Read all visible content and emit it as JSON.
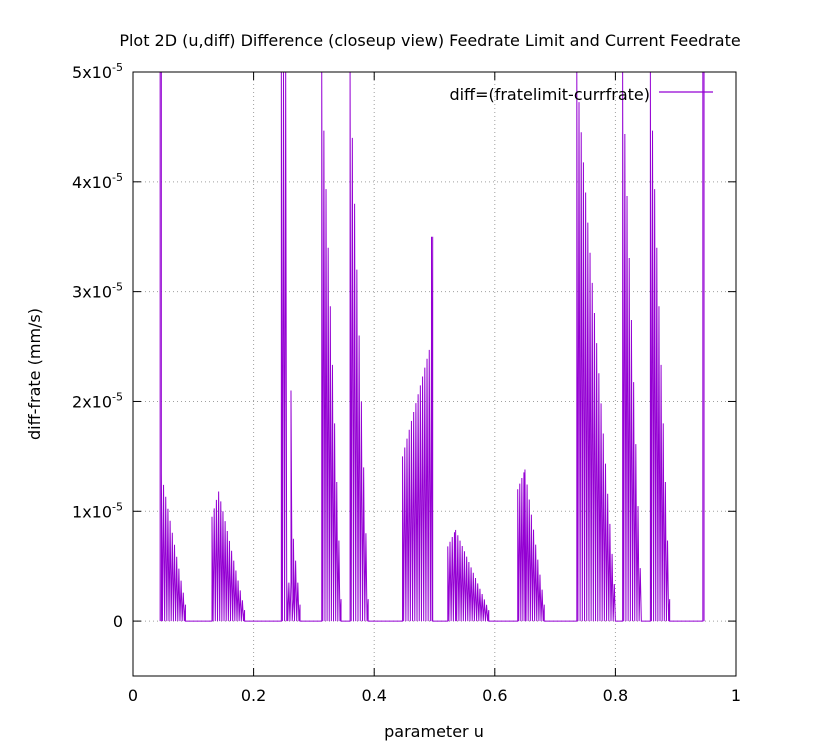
{
  "chart_data": {
    "type": "line",
    "title": "Plot 2D (u,diff) Difference (closeup view) Feedrate Limit and Current Feedrate",
    "xlabel": "parameter u",
    "ylabel": "diff-frate (mm/s)",
    "xlim": [
      0,
      1
    ],
    "ylim": [
      -5e-06,
      5e-05
    ],
    "grid": true,
    "legend_position": "top-right",
    "x_ticks": [
      {
        "value": 0,
        "label": "0"
      },
      {
        "value": 0.2,
        "label": "0.2"
      },
      {
        "value": 0.4,
        "label": "0.4"
      },
      {
        "value": 0.6,
        "label": "0.6"
      },
      {
        "value": 0.8,
        "label": "0.8"
      },
      {
        "value": 1,
        "label": "1"
      }
    ],
    "y_ticks": [
      {
        "value": 0,
        "mantissa": "0",
        "exponent": ""
      },
      {
        "value": 1e-05,
        "mantissa": "1x10",
        "exponent": "-5"
      },
      {
        "value": 2e-05,
        "mantissa": "2x10",
        "exponent": "-5"
      },
      {
        "value": 3e-05,
        "mantissa": "3x10",
        "exponent": "-5"
      },
      {
        "value": 4e-05,
        "mantissa": "4x10",
        "exponent": "-5"
      },
      {
        "value": 5e-05,
        "mantissa": "5x10",
        "exponent": "-5"
      }
    ],
    "series": [
      {
        "name": "diff=(fratelimit-currfrate)",
        "color": "#9400d3",
        "segments": [
          {
            "u_start": 0.045,
            "u_end": 0.047,
            "max_start": 5e-05,
            "max_end": 5e-05,
            "pattern": "solid"
          },
          {
            "u_start": 0.047,
            "u_end": 0.087,
            "max_start": 1.35e-05,
            "max_end": 1.5e-06,
            "pattern": "oscillating"
          },
          {
            "u_start": 0.087,
            "u_end": 0.131,
            "max_start": 0,
            "max_end": 0,
            "pattern": "flat"
          },
          {
            "u_start": 0.131,
            "u_end": 0.142,
            "max_start": 9.5e-06,
            "max_end": 1.18e-05,
            "pattern": "oscillating"
          },
          {
            "u_start": 0.142,
            "u_end": 0.185,
            "max_start": 1.18e-05,
            "max_end": 1e-06,
            "pattern": "oscillating"
          },
          {
            "u_start": 0.185,
            "u_end": 0.246,
            "max_start": 0,
            "max_end": 0,
            "pattern": "flat"
          },
          {
            "u_start": 0.246,
            "u_end": 0.255,
            "max_start": 5e-05,
            "max_end": 5e-05,
            "pattern": "spike"
          },
          {
            "u_start": 0.255,
            "u_end": 0.262,
            "max_start": 3.5e-06,
            "max_end": 3.5e-06,
            "pattern": "oscillating"
          },
          {
            "u_start": 0.262,
            "u_end": 0.266,
            "max_start": 2.1e-05,
            "max_end": 2e-06,
            "pattern": "oscillating"
          },
          {
            "u_start": 0.266,
            "u_end": 0.277,
            "max_start": 7.5e-06,
            "max_end": 1.5e-06,
            "pattern": "oscillating"
          },
          {
            "u_start": 0.277,
            "u_end": 0.313,
            "max_start": 0,
            "max_end": 0,
            "pattern": "flat"
          },
          {
            "u_start": 0.313,
            "u_end": 0.345,
            "max_start": 5e-05,
            "max_end": 2e-06,
            "pattern": "spike"
          },
          {
            "u_start": 0.345,
            "u_end": 0.36,
            "max_start": 0,
            "max_end": 0,
            "pattern": "flat"
          },
          {
            "u_start": 0.36,
            "u_end": 0.39,
            "max_start": 5e-05,
            "max_end": 2e-06,
            "pattern": "spike"
          },
          {
            "u_start": 0.39,
            "u_end": 0.447,
            "max_start": 0,
            "max_end": 0,
            "pattern": "flat"
          },
          {
            "u_start": 0.447,
            "u_end": 0.495,
            "max_start": 1.5e-05,
            "max_end": 2.55e-05,
            "pattern": "oscillating"
          },
          {
            "u_start": 0.495,
            "u_end": 0.497,
            "max_start": 3.5e-05,
            "max_end": 3.5e-05,
            "pattern": "spike"
          },
          {
            "u_start": 0.497,
            "u_end": 0.522,
            "max_start": 0,
            "max_end": 0,
            "pattern": "flat"
          },
          {
            "u_start": 0.522,
            "u_end": 0.535,
            "max_start": 6.8e-06,
            "max_end": 8.3e-06,
            "pattern": "oscillating"
          },
          {
            "u_start": 0.535,
            "u_end": 0.59,
            "max_start": 8.3e-06,
            "max_end": 1e-06,
            "pattern": "oscillating"
          },
          {
            "u_start": 0.59,
            "u_end": 0.638,
            "max_start": 0,
            "max_end": 0,
            "pattern": "flat"
          },
          {
            "u_start": 0.638,
            "u_end": 0.65,
            "max_start": 1.2e-05,
            "max_end": 1.38e-05,
            "pattern": "oscillating"
          },
          {
            "u_start": 0.65,
            "u_end": 0.682,
            "max_start": 1.38e-05,
            "max_end": 1.5e-06,
            "pattern": "oscillating"
          },
          {
            "u_start": 0.682,
            "u_end": 0.736,
            "max_start": 0,
            "max_end": 0,
            "pattern": "flat"
          },
          {
            "u_start": 0.736,
            "u_end": 0.8,
            "max_start": 5e-05,
            "max_end": 2e-06,
            "pattern": "spike"
          },
          {
            "u_start": 0.8,
            "u_end": 0.812,
            "max_start": 0,
            "max_end": 0,
            "pattern": "flat"
          },
          {
            "u_start": 0.812,
            "u_end": 0.843,
            "max_start": 5e-05,
            "max_end": 2e-06,
            "pattern": "spike"
          },
          {
            "u_start": 0.843,
            "u_end": 0.858,
            "max_start": 0,
            "max_end": 0,
            "pattern": "flat"
          },
          {
            "u_start": 0.858,
            "u_end": 0.89,
            "max_start": 5e-05,
            "max_end": 2e-06,
            "pattern": "spike"
          },
          {
            "u_start": 0.89,
            "u_end": 0.945,
            "max_start": 0,
            "max_end": 0,
            "pattern": "flat"
          },
          {
            "u_start": 0.945,
            "u_end": 0.947,
            "max_start": 5e-05,
            "max_end": 5e-05,
            "pattern": "solid"
          }
        ]
      }
    ]
  }
}
